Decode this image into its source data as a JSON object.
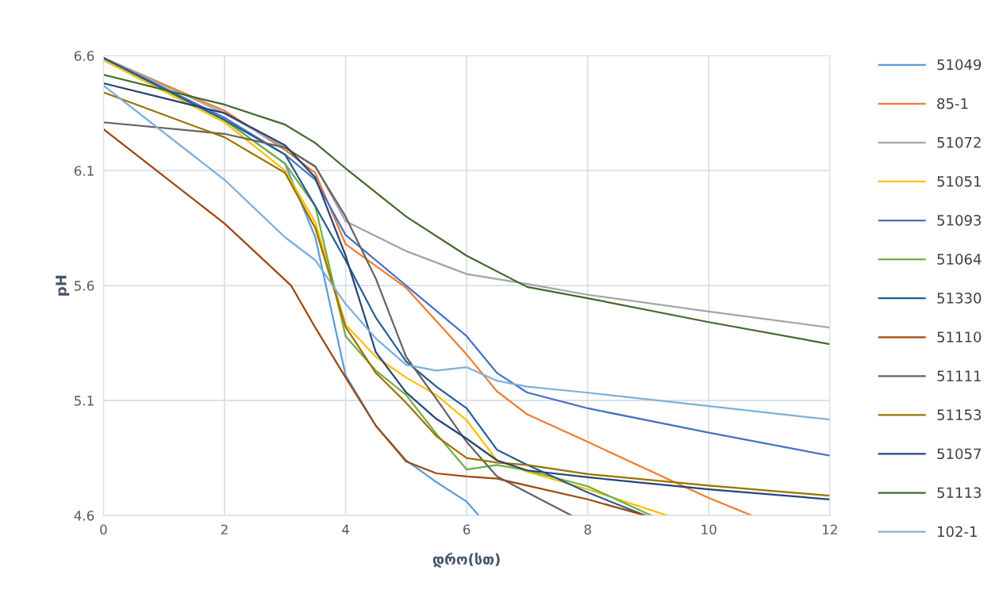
{
  "chart_data": {
    "type": "line",
    "xlabel": "დრო(სთ)",
    "ylabel": "pH",
    "xlim": [
      0,
      12
    ],
    "xticks": [
      0,
      2,
      4,
      6,
      8,
      10,
      12
    ],
    "ylim": [
      4.6,
      6.6
    ],
    "yticks": [
      4.6,
      5.1,
      5.6,
      6.1,
      6.6
    ],
    "grid": true,
    "legend": "right",
    "marker": "none",
    "line_style": "solid",
    "series": [
      {
        "name": "51049",
        "color": "#5b9bd5",
        "x": [
          0,
          2,
          3,
          3.5,
          4,
          4.5,
          5,
          5.5,
          6,
          6.2
        ],
        "values": [
          6.59,
          6.32,
          6.13,
          5.81,
          5.21,
          4.99,
          4.84,
          4.745,
          4.66,
          4.6
        ]
      },
      {
        "name": "85-1",
        "color": "#ed7d31",
        "x": [
          0,
          2,
          3,
          3.5,
          4,
          5,
          6,
          6.5,
          7,
          8,
          10,
          10.71
        ],
        "values": [
          6.59,
          6.36,
          6.19,
          6.09,
          5.78,
          5.59,
          5.3,
          5.14,
          5.04,
          4.92,
          4.676,
          4.6
        ]
      },
      {
        "name": "51072",
        "color": "#a5a5a5",
        "x": [
          0,
          2,
          3,
          3.5,
          4,
          5,
          6,
          7,
          8,
          10,
          12
        ],
        "values": [
          6.59,
          6.35,
          6.2,
          6.12,
          5.88,
          5.75,
          5.65,
          5.607,
          5.56,
          5.487,
          5.417
        ]
      },
      {
        "name": "51051",
        "color": "#ffc000",
        "x": [
          0,
          2,
          3,
          3.5,
          4,
          4.5,
          5,
          5.5,
          6,
          6.5,
          7,
          8,
          9.31
        ],
        "values": [
          6.58,
          6.31,
          6.1,
          5.875,
          5.43,
          5.29,
          5.2,
          5.124,
          5.014,
          4.84,
          4.79,
          4.714,
          4.6
        ]
      },
      {
        "name": "51093",
        "color": "#4472c4",
        "x": [
          0,
          2,
          3,
          3.5,
          4,
          5,
          6,
          6.5,
          7,
          8,
          10,
          12
        ],
        "values": [
          6.59,
          6.33,
          6.17,
          6.06,
          5.82,
          5.6,
          5.38,
          5.22,
          5.135,
          5.066,
          4.96,
          4.86
        ]
      },
      {
        "name": "51064",
        "color": "#70ad47",
        "x": [
          0,
          2,
          3,
          3.5,
          4,
          4.5,
          5,
          5.5,
          6,
          6.5,
          7,
          8,
          9.05
        ],
        "values": [
          6.59,
          6.32,
          6.13,
          5.945,
          5.38,
          5.23,
          5.124,
          4.955,
          4.8,
          4.82,
          4.796,
          4.727,
          4.6
        ]
      },
      {
        "name": "51330",
        "color": "#255e91",
        "x": [
          0,
          2,
          3,
          3.5,
          4,
          4.5,
          5,
          5.5,
          6,
          6.5,
          7,
          8,
          8.95
        ],
        "values": [
          6.59,
          6.32,
          6.17,
          5.945,
          5.71,
          5.46,
          5.27,
          5.16,
          5.066,
          4.886,
          4.82,
          4.7,
          4.6
        ]
      },
      {
        "name": "51110",
        "color": "#9e480e",
        "x": [
          0,
          2,
          3.1,
          3.5,
          4,
          4.5,
          5,
          5.5,
          6,
          6.5,
          7,
          8,
          8.95
        ],
        "values": [
          6.28,
          5.87,
          5.6,
          5.417,
          5.2,
          4.99,
          4.835,
          4.783,
          4.77,
          4.76,
          4.73,
          4.67,
          4.6
        ]
      },
      {
        "name": "51111",
        "color": "#636363",
        "x": [
          0,
          2,
          3,
          3.5,
          4,
          4.5,
          5,
          5.5,
          6,
          6.5,
          7,
          7.73
        ],
        "values": [
          6.31,
          6.26,
          6.2,
          6.117,
          5.9,
          5.63,
          5.29,
          5.107,
          4.92,
          4.77,
          4.7,
          4.6
        ]
      },
      {
        "name": "51153",
        "color": "#997300",
        "x": [
          0,
          2,
          3,
          3.5,
          4,
          4.5,
          5,
          5.5,
          6,
          6.5,
          7,
          8,
          10,
          12
        ],
        "values": [
          6.44,
          6.245,
          6.09,
          5.85,
          5.42,
          5.22,
          5.09,
          4.945,
          4.85,
          4.83,
          4.82,
          4.78,
          4.73,
          4.686
        ]
      },
      {
        "name": "51057",
        "color": "#264478",
        "x": [
          0,
          2,
          3,
          3.5,
          4,
          4.5,
          5,
          5.5,
          6,
          6.5,
          7,
          8,
          10,
          12
        ],
        "values": [
          6.48,
          6.35,
          6.21,
          6.07,
          5.73,
          5.31,
          5.135,
          5.02,
          4.934,
          4.84,
          4.796,
          4.766,
          4.714,
          4.67
        ]
      },
      {
        "name": "51113",
        "color": "#43682b",
        "x": [
          0,
          2,
          3,
          3.5,
          4,
          5,
          6,
          7,
          8,
          10,
          12
        ],
        "values": [
          6.517,
          6.387,
          6.3,
          6.22,
          6.11,
          5.9,
          5.73,
          5.594,
          5.545,
          5.441,
          5.345
        ]
      },
      {
        "name": "102-1",
        "color": "#7cafdd",
        "x": [
          0,
          2,
          3,
          3.5,
          4,
          4.5,
          5,
          5.5,
          6,
          6.5,
          7,
          8,
          10,
          12
        ],
        "values": [
          6.47,
          6.06,
          5.81,
          5.71,
          5.52,
          5.37,
          5.255,
          5.23,
          5.245,
          5.186,
          5.16,
          5.134,
          5.076,
          5.017
        ]
      }
    ]
  }
}
